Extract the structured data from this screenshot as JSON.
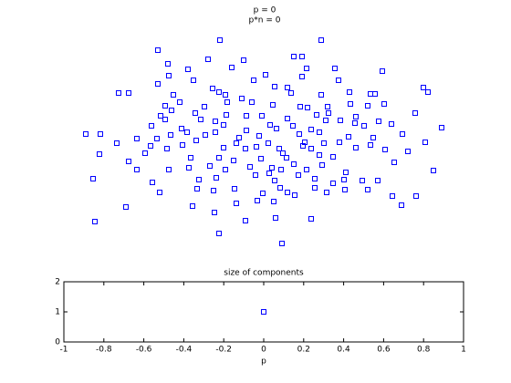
{
  "chart_data": [
    {
      "type": "scatter",
      "title": "p = 0",
      "subtitle": "p*n = 0",
      "color": "#0000ff",
      "axes": false,
      "xlim": [
        -1.1,
        1.1
      ],
      "ylim": [
        -1.25,
        1.25
      ],
      "x": [
        -0.245,
        0.31,
        -0.585,
        0.16,
        0.205,
        -0.53,
        -0.115,
        0.645,
        -0.31,
        -0.42,
        -0.18,
        0.23,
        0.385,
        -0.525,
        0.005,
        0.205,
        -0.06,
        0.405,
        -0.585,
        -0.39,
        -0.285,
        0.055,
        0.125,
        -0.8,
        -0.745,
        -0.5,
        -0.25,
        -0.215,
        0.87,
        0.895,
        0.31,
        0.465,
        0.58,
        0.605,
        0.145,
        -0.465,
        -0.125,
        0.045,
        0.195,
        0.565,
        0.655,
        -0.545,
        -0.33,
        -0.205,
        -0.07,
        0.345,
        0.47,
        0.235,
        -0.57,
        -0.51,
        -0.38,
        -0.21,
        -0.1,
        -0.015,
        0.285,
        0.35,
        0.5,
        0.125,
        -0.62,
        -0.545,
        -0.35,
        -0.27,
        -0.225,
        0.03,
        0.155,
        0.335,
        0.415,
        0.495,
        0.625,
        0.825,
        0.97,
        0.695,
        0.545,
        -0.455,
        -0.1,
        0.065,
        0.255,
        0.3,
        -0.98,
        -0.9,
        -0.7,
        -0.59,
        -0.515,
        -0.425,
        -0.325,
        -0.27,
        -0.14,
        -0.03,
        0.19,
        0.22,
        0.46,
        0.595,
        0.755,
        -0.81,
        -0.625,
        -0.45,
        -0.375,
        -0.155,
        0.02,
        0.325,
        0.41,
        0.58,
        0.88,
        -0.905,
        -0.655,
        -0.535,
        -0.225,
        -0.105,
        -0.045,
        0.08,
        0.1,
        0.21,
        0.255,
        0.5,
        0.66,
        0.785,
        -0.745,
        -0.405,
        -0.25,
        -0.17,
        -0.02,
        0.12,
        0.3,
        0.375,
        -0.7,
        -0.525,
        -0.415,
        -0.3,
        -0.215,
        -0.08,
        0.025,
        0.09,
        0.16,
        0.23,
        0.315,
        0.445,
        0.04,
        0.71,
        0.925,
        -0.94,
        -0.615,
        -0.36,
        -0.265,
        -0.05,
        0.055,
        0.185,
        0.275,
        0.435,
        0.535,
        0.62,
        -0.575,
        -0.37,
        -0.28,
        -0.165,
        -0.01,
        0.085,
        0.125,
        0.165,
        0.275,
        0.34,
        0.375,
        0.44,
        0.565,
        0.7,
        0.83,
        -0.395,
        -0.155,
        -0.04,
        -0.76,
        0.05,
        -0.93,
        -0.275,
        -0.105,
        0.06,
        0.255,
        0.75,
        -0.25,
        0.095
      ],
      "y": [
        1.11,
        1.11,
        1.0,
        0.93,
        0.93,
        0.85,
        0.89,
        0.77,
        0.9,
        0.79,
        0.81,
        0.8,
        0.8,
        0.72,
        0.73,
        0.71,
        0.67,
        0.67,
        0.63,
        0.67,
        0.58,
        0.6,
        0.59,
        0.53,
        0.53,
        0.51,
        0.54,
        0.51,
        0.59,
        0.54,
        0.51,
        0.54,
        0.52,
        0.52,
        0.53,
        0.43,
        0.47,
        0.4,
        0.38,
        0.39,
        0.41,
        0.39,
        0.38,
        0.43,
        0.43,
        0.38,
        0.41,
        0.37,
        0.28,
        0.34,
        0.31,
        0.29,
        0.28,
        0.28,
        0.29,
        0.31,
        0.27,
        0.25,
        0.17,
        0.24,
        0.24,
        0.22,
        0.18,
        0.18,
        0.17,
        0.23,
        0.23,
        0.2,
        0.22,
        0.31,
        0.15,
        0.19,
        0.17,
        0.14,
        0.12,
        0.14,
        0.13,
        0.1,
        0.08,
        0.08,
        0.03,
        0.03,
        0.07,
        0.1,
        0.07,
        0.1,
        0.04,
        0.06,
        0.08,
        -0.01,
        0.05,
        0.04,
        0.08,
        -0.02,
        -0.05,
        -0.04,
        0.01,
        -0.02,
        -0.02,
        -0.02,
        -0.01,
        -0.04,
        -0.01,
        -0.14,
        -0.13,
        -0.08,
        -0.07,
        -0.08,
        -0.06,
        -0.08,
        -0.13,
        -0.05,
        -0.08,
        -0.07,
        -0.09,
        -0.11,
        -0.22,
        -0.18,
        -0.18,
        -0.21,
        -0.19,
        -0.18,
        -0.15,
        -0.17,
        -0.31,
        -0.31,
        -0.29,
        -0.27,
        -0.31,
        -0.28,
        -0.35,
        -0.31,
        -0.25,
        -0.31,
        -0.26,
        -0.34,
        -0.29,
        -0.23,
        -0.32,
        -0.41,
        -0.45,
        -0.42,
        -0.4,
        -0.37,
        -0.43,
        -0.37,
        -0.41,
        -0.42,
        -0.43,
        -0.43,
        -0.56,
        -0.52,
        -0.54,
        -0.52,
        -0.57,
        -0.51,
        -0.56,
        -0.59,
        -0.51,
        -0.56,
        -0.46,
        -0.53,
        -0.53,
        -0.6,
        -0.6,
        -0.71,
        -0.68,
        -0.65,
        -0.72,
        -0.66,
        -0.88,
        -0.78,
        -0.87,
        -0.84,
        -0.85,
        -0.7,
        -1.01,
        -1.12
      ]
    },
    {
      "type": "scatter",
      "title": "size of components",
      "xlabel": "p",
      "color": "#0000ff",
      "axes": true,
      "xlim": [
        -1,
        1
      ],
      "ylim": [
        0,
        2
      ],
      "xticks": [
        -1,
        -0.8,
        -0.6,
        -0.4,
        -0.2,
        0,
        0.2,
        0.4,
        0.6,
        0.8,
        1
      ],
      "yticks": [
        0,
        1,
        2
      ],
      "x": [
        0
      ],
      "y": [
        1
      ]
    }
  ]
}
